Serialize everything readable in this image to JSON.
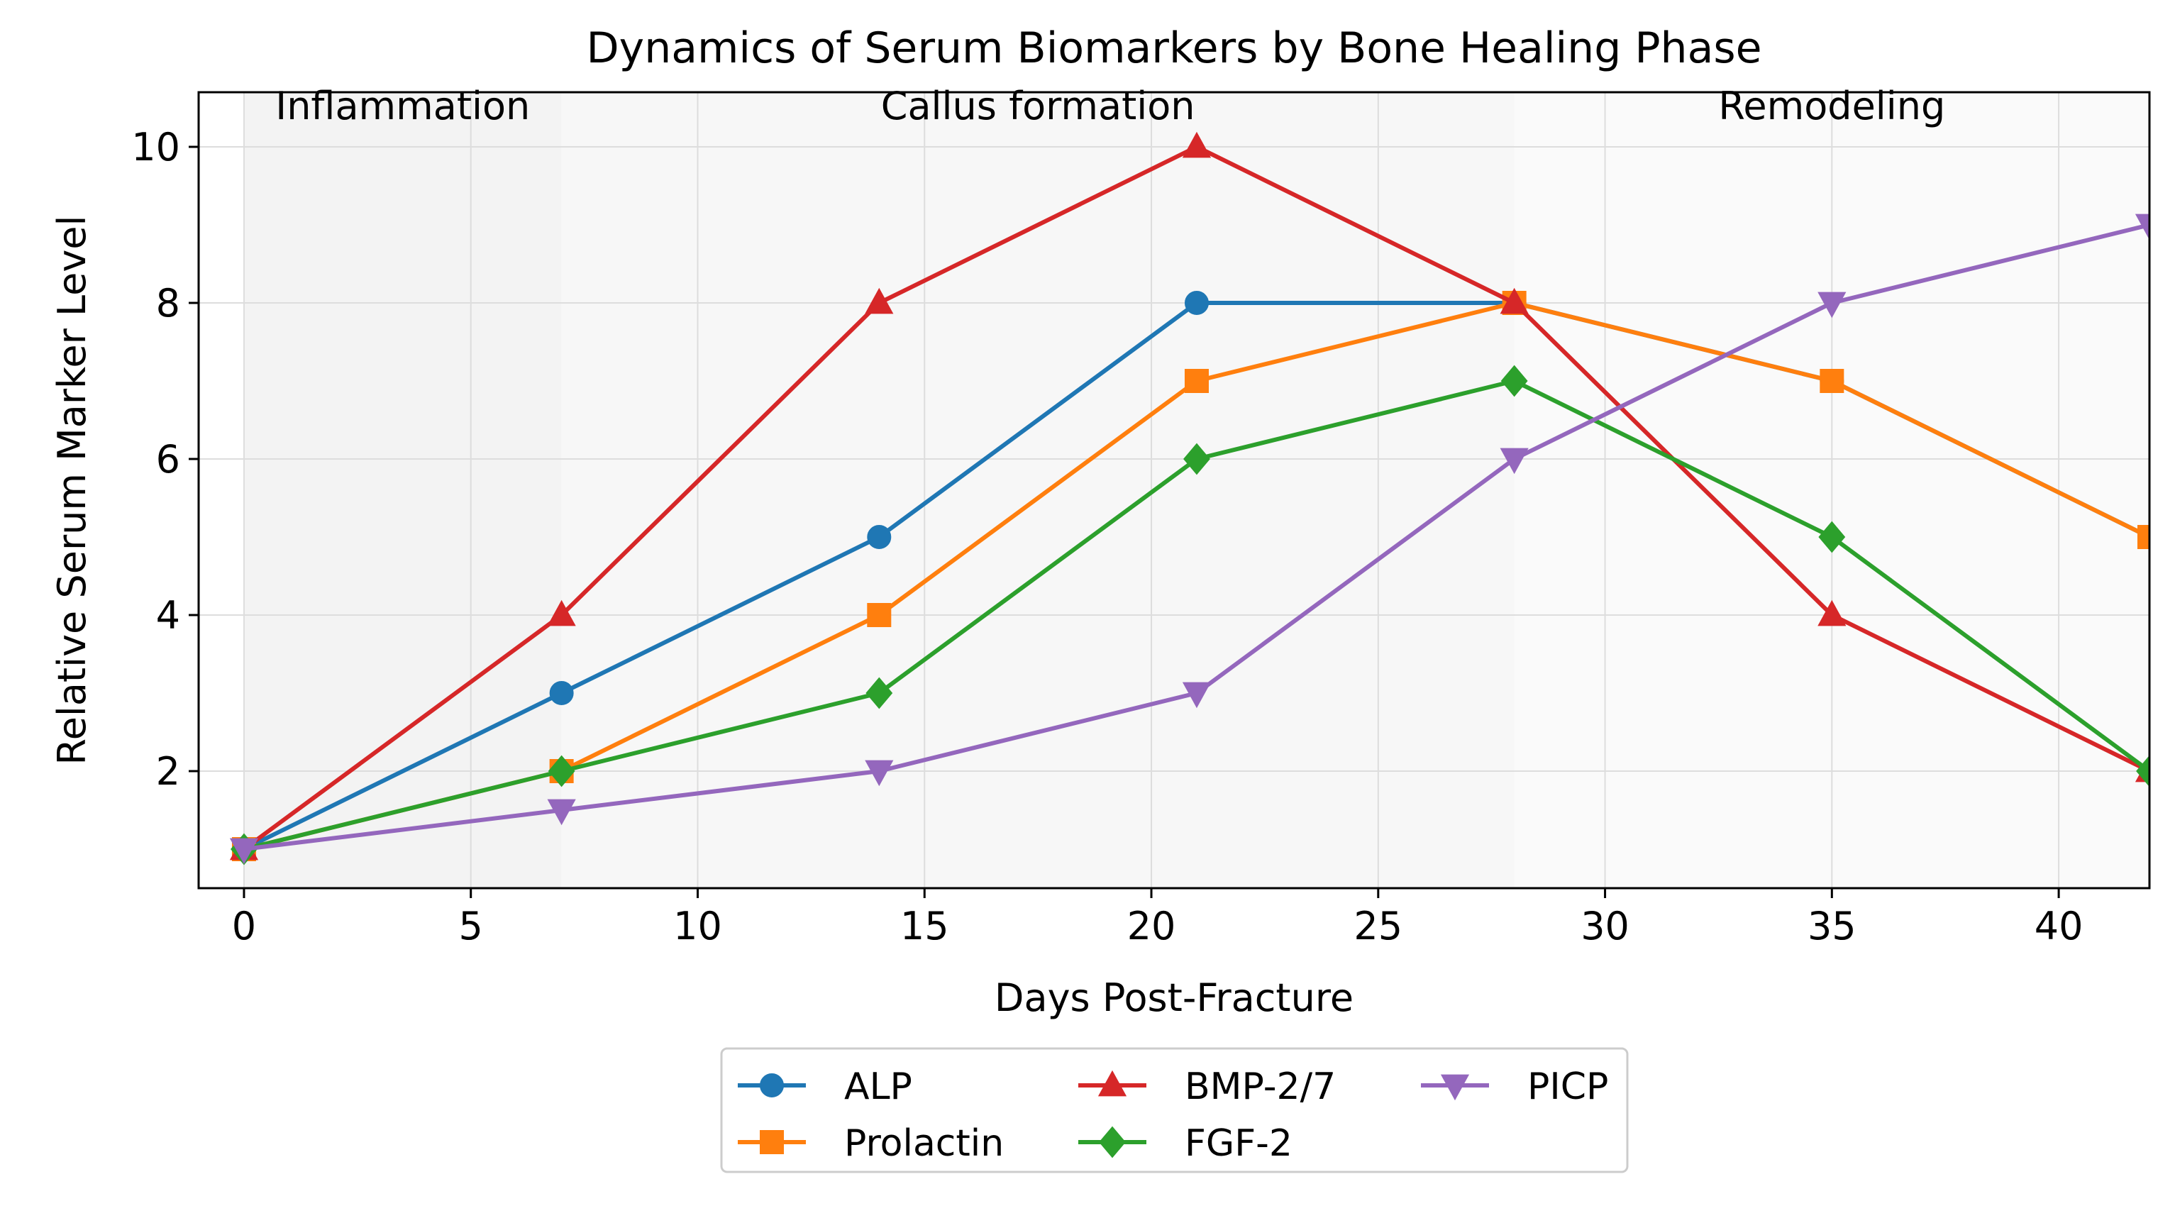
{
  "chart_data": {
    "type": "line",
    "title": "Dynamics of Serum Biomarkers by Bone Healing Phase",
    "xlabel": "Days Post-Fracture",
    "ylabel": "Relative Serum Marker Level",
    "xlim": [
      -1,
      42
    ],
    "ylim": [
      0.5,
      10.7
    ],
    "x": [
      0,
      7,
      14,
      21,
      28,
      35,
      42
    ],
    "xticks": [
      0,
      5,
      10,
      15,
      20,
      25,
      30,
      35,
      40
    ],
    "yticks": [
      2,
      4,
      6,
      8,
      10
    ],
    "grid": true,
    "legend_position": "bottom-center",
    "phases": [
      {
        "label": "Inflammation",
        "start": 0,
        "end": 7,
        "color": "#f3f3f3"
      },
      {
        "label": "Callus formation",
        "start": 7,
        "end": 28,
        "color": "#f7f7f7"
      },
      {
        "label": "Remodeling",
        "start": 28,
        "end": 42,
        "color": "#fafafa"
      }
    ],
    "series": [
      {
        "name": "ALP",
        "color": "#1f77b4",
        "marker": "circle",
        "values": [
          1,
          3,
          5,
          8,
          8,
          7,
          5
        ]
      },
      {
        "name": "Prolactin",
        "color": "#ff7f0e",
        "marker": "square",
        "values": [
          1,
          2,
          4,
          7,
          8,
          7,
          5
        ]
      },
      {
        "name": "BMP-2/7",
        "color": "#d62728",
        "marker": "triangle-up",
        "values": [
          1,
          4,
          8,
          10,
          8,
          4,
          2
        ]
      },
      {
        "name": "FGF-2",
        "color": "#2ca02c",
        "marker": "diamond",
        "values": [
          1,
          2,
          3,
          6,
          7,
          5,
          2
        ]
      },
      {
        "name": "PICP",
        "color": "#9467bd",
        "marker": "triangle-down",
        "values": [
          1,
          1.5,
          2,
          3,
          6,
          8,
          9
        ]
      }
    ]
  }
}
